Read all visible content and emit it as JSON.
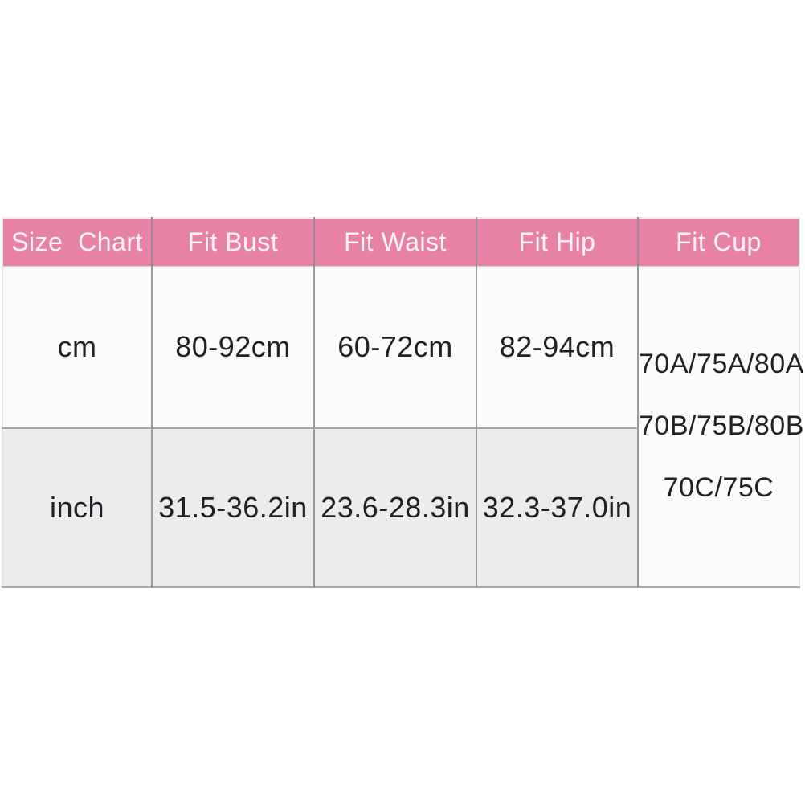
{
  "page": {
    "background": "#ffffff"
  },
  "size_chart": {
    "accent_color": "#e782a6",
    "header_text_color": "#fdf4f8",
    "row_alt_color": "#ececec",
    "header": {
      "size_chart": "Size  Chart",
      "fit_bust": "Fit Bust",
      "fit_waist": "Fit Waist",
      "fit_hip": "Fit Hip",
      "fit_cup": "Fit Cup"
    },
    "rows": [
      {
        "unit": "cm",
        "bust": "80-92cm",
        "waist": "60-72cm",
        "hip": "82-94cm"
      },
      {
        "unit": "inch",
        "bust": "31.5-36.2in",
        "waist": "23.6-28.3in",
        "hip": "32.3-37.0in"
      }
    ],
    "cup": {
      "lines": [
        "70A/75A/80A",
        "70B/75B/80B",
        "70C/75C"
      ]
    }
  },
  "chart_data": {
    "type": "table",
    "title": "Size Chart",
    "columns": [
      "Size  Chart",
      "Fit Bust",
      "Fit Waist",
      "Fit Hip",
      "Fit Cup"
    ],
    "rows": [
      [
        "cm",
        "80-92cm",
        "60-72cm",
        "82-94cm",
        "70A/75A/80A 70B/75B/80B 70C/75C"
      ],
      [
        "inch",
        "31.5-36.2in",
        "23.6-28.3in",
        "32.3-37.0in",
        "70A/75A/80A 70B/75B/80B 70C/75C"
      ]
    ],
    "layout": "Fit Cup cell spans both data rows; header row pink, cm row white, inch row light gray"
  }
}
